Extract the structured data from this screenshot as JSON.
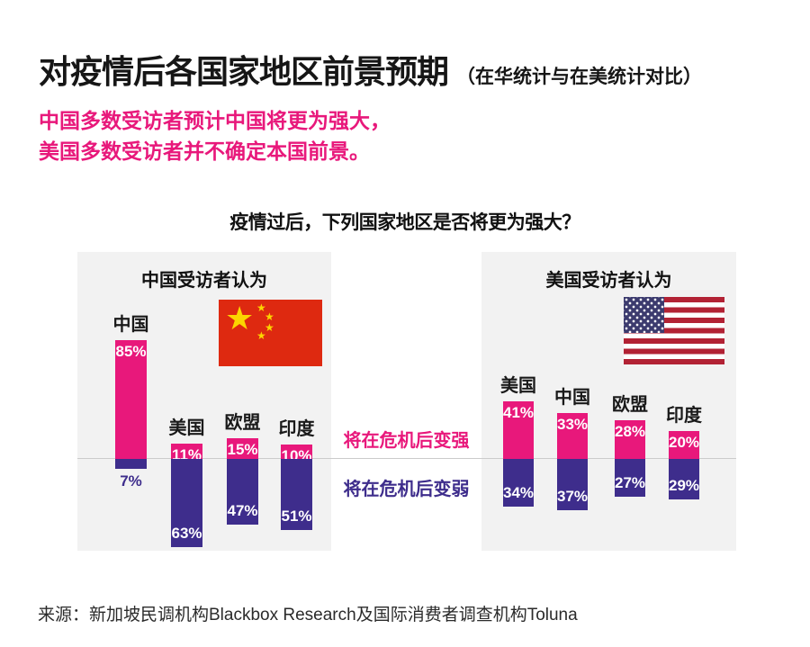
{
  "header": {
    "title": "对疫情后各国家地区前景预期",
    "title_suffix": "（在华统计与在美统计对比）",
    "subtitle_lines": [
      "中国多数受访者预计中国将更为强大，",
      "美国多数受访者并不确定本国前景。"
    ]
  },
  "question": "疫情过后，下列国家地区是否将更为强大？",
  "legend": {
    "stronger": "将在危机后变强",
    "weaker": "将在危机后变弱"
  },
  "source": "来源：新加坡民调机构Blackbox Research及国际消费者调查机构Toluna",
  "colors": {
    "pink": "#e8187b",
    "purple": "#3e2d8c",
    "panel_bg": "#f2f2f2",
    "baseline": "#cbcbcb",
    "china_flag_red": "#de2910",
    "china_flag_star": "#fcd500",
    "us_flag_red": "#b22234",
    "us_flag_blue": "#3c3b6e"
  },
  "chart_data": [
    {
      "type": "bar",
      "title": "中国受访者认为",
      "flag": "china-flag",
      "orientation": "diverging-vertical",
      "unit": "%",
      "categories": [
        "中国",
        "美国",
        "欧盟",
        "印度"
      ],
      "series": [
        {
          "name": "将在危机后变强",
          "values": [
            85,
            11,
            15,
            10
          ]
        },
        {
          "name": "将在危机后变弱",
          "values": [
            7,
            63,
            47,
            51
          ]
        }
      ],
      "ylim": [
        0,
        100
      ],
      "grid": false,
      "legend_position": "center-between-panels"
    },
    {
      "type": "bar",
      "title": "美国受访者认为",
      "flag": "usa-flag",
      "orientation": "diverging-vertical",
      "unit": "%",
      "categories": [
        "美国",
        "中国",
        "欧盟",
        "印度"
      ],
      "series": [
        {
          "name": "将在危机后变强",
          "values": [
            41,
            33,
            28,
            20
          ]
        },
        {
          "name": "将在危机后变弱",
          "values": [
            34,
            37,
            27,
            29
          ]
        }
      ],
      "ylim": [
        0,
        100
      ],
      "grid": false,
      "legend_position": "center-between-panels"
    }
  ]
}
